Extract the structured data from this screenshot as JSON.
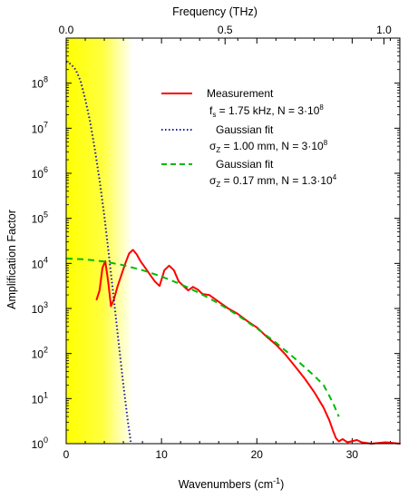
{
  "chart_data": {
    "type": "line",
    "title": "",
    "xlabel_bottom": "Wavenumbers (cm",
    "xlabel_bottom_sup": "-1",
    "xlabel_bottom_close": ")",
    "xlabel_top": "Frequency (THz)",
    "ylabel": "Amplification Factor",
    "xlim": [
      0,
      35
    ],
    "x_ticks": [
      0,
      10,
      20,
      30
    ],
    "x_minor_step": 2,
    "top_xlim": [
      0,
      1.05
    ],
    "top_ticks": [
      "0.0",
      "0.5",
      "1.0"
    ],
    "top_tick_values": [
      0,
      0.5,
      1.0
    ],
    "yscale": "log",
    "ylim_exponents": [
      0,
      9
    ],
    "y_tick_base": "10",
    "y_tick_exponents": [
      "0",
      "1",
      "2",
      "3",
      "4",
      "5",
      "6",
      "7",
      "8"
    ],
    "highlight_band": {
      "from": 0,
      "to": 7,
      "color": "#ffff00"
    },
    "legend": {
      "placement": "top-right",
      "measurement": {
        "label": "Measurement",
        "sub1_a": "f",
        "sub1_b": "s",
        "sub1_c": " = 1.75 kHz, N = 3·10",
        "sub1_d": "8"
      },
      "gauss1": {
        "label": "Gaussian fit",
        "sub_a": "σ",
        "sub_b": "Z",
        "sub_c": " = 1.00 mm, N = 3·10",
        "sub_d": "8"
      },
      "gauss2": {
        "label": "Gaussian fit",
        "sub_a": "σ",
        "sub_b": "Z",
        "sub_c": " = 0.17 mm, N = 1.3·10",
        "sub_d": "4"
      }
    },
    "series": [
      {
        "key": "measurement",
        "color": "#ff0000",
        "style": "solid",
        "points": [
          [
            3.2,
            3.2
          ],
          [
            3.5,
            3.4
          ],
          [
            3.8,
            3.9
          ],
          [
            4.1,
            4.05
          ],
          [
            4.4,
            3.6
          ],
          [
            4.7,
            3.05
          ],
          [
            5.0,
            3.2
          ],
          [
            5.4,
            3.5
          ],
          [
            5.8,
            3.75
          ],
          [
            6.2,
            4.0
          ],
          [
            6.6,
            4.22
          ],
          [
            7.0,
            4.3
          ],
          [
            7.4,
            4.2
          ],
          [
            7.8,
            4.05
          ],
          [
            8.3,
            3.9
          ],
          [
            8.8,
            3.75
          ],
          [
            9.3,
            3.6
          ],
          [
            9.8,
            3.5
          ],
          [
            10.3,
            3.85
          ],
          [
            10.8,
            3.95
          ],
          [
            11.3,
            3.85
          ],
          [
            11.8,
            3.6
          ],
          [
            12.3,
            3.5
          ],
          [
            12.8,
            3.4
          ],
          [
            13.3,
            3.48
          ],
          [
            13.8,
            3.42
          ],
          [
            14.3,
            3.32
          ],
          [
            15.0,
            3.3
          ],
          [
            16.0,
            3.15
          ],
          [
            17.0,
            3.0
          ],
          [
            18.0,
            2.88
          ],
          [
            19.0,
            2.72
          ],
          [
            20.0,
            2.58
          ],
          [
            21.0,
            2.38
          ],
          [
            22.0,
            2.2
          ],
          [
            23.0,
            1.98
          ],
          [
            24.0,
            1.72
          ],
          [
            25.0,
            1.45
          ],
          [
            26.0,
            1.15
          ],
          [
            27.0,
            0.8
          ],
          [
            27.6,
            0.52
          ],
          [
            28.0,
            0.28
          ],
          [
            28.3,
            0.12
          ],
          [
            28.6,
            0.05
          ],
          [
            29.0,
            0.1
          ],
          [
            29.5,
            0.03
          ],
          [
            30.5,
            0.08
          ],
          [
            31.0,
            0.03
          ],
          [
            32.0,
            0.0
          ],
          [
            33.5,
            0.03
          ],
          [
            35.0,
            0.0
          ]
        ]
      },
      {
        "key": "gauss1",
        "color": "#1a1aa0",
        "style": "dotted",
        "points": [
          [
            0,
            8.48
          ],
          [
            0.5,
            8.42
          ],
          [
            1.0,
            8.3
          ],
          [
            1.5,
            8.05
          ],
          [
            2.0,
            7.65
          ],
          [
            2.5,
            7.15
          ],
          [
            3.0,
            6.55
          ],
          [
            3.5,
            5.85
          ],
          [
            4.0,
            5.05
          ],
          [
            4.5,
            4.15
          ],
          [
            5.0,
            3.2
          ],
          [
            5.5,
            2.25
          ],
          [
            6.0,
            1.3
          ],
          [
            6.5,
            0.45
          ],
          [
            6.8,
            0.0
          ]
        ]
      },
      {
        "key": "gauss2",
        "color": "#00bb00",
        "style": "dashed",
        "points": [
          [
            0,
            4.11
          ],
          [
            2,
            4.09
          ],
          [
            4,
            4.04
          ],
          [
            6,
            3.96
          ],
          [
            8,
            3.85
          ],
          [
            10,
            3.71
          ],
          [
            12,
            3.54
          ],
          [
            14,
            3.34
          ],
          [
            16,
            3.11
          ],
          [
            18,
            2.85
          ],
          [
            20,
            2.56
          ],
          [
            22,
            2.24
          ],
          [
            24,
            1.89
          ],
          [
            26,
            1.51
          ],
          [
            27,
            1.3
          ],
          [
            28,
            0.9
          ],
          [
            28.6,
            0.6
          ]
        ]
      }
    ]
  }
}
